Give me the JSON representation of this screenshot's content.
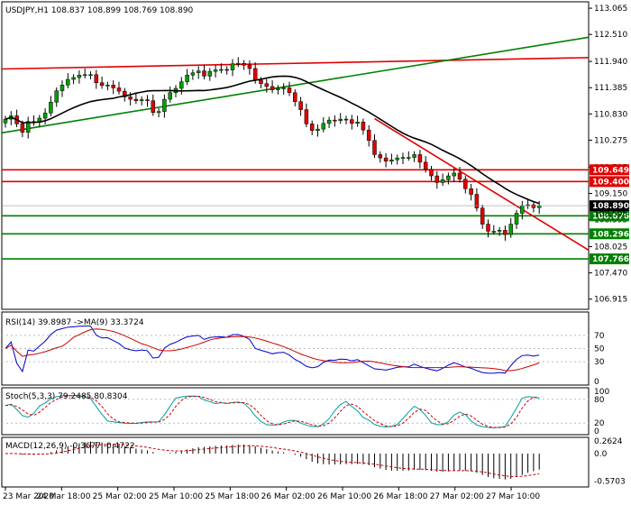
{
  "chart_data": {
    "type": "candlestick",
    "symbol_header": "USDJPY,H1  108.837 108.899 108.769 108.890",
    "price_axis": {
      "min": 106.7,
      "max": 113.2,
      "ticks": [
        "113.065",
        "112.510",
        "111.940",
        "111.385",
        "110.830",
        "110.275",
        "109.705",
        "109.150",
        "108.595",
        "108.025",
        "107.470",
        "106.915"
      ]
    },
    "time_axis": [
      "23 Mar 2020",
      "24 Mar 18:00",
      "25 Mar 02:00",
      "25 Mar 10:00",
      "25 Mar 18:00",
      "26 Mar 02:00",
      "26 Mar 10:00",
      "26 Mar 18:00",
      "27 Mar 02:00",
      "27 Mar 10:00"
    ],
    "colors": {
      "bull": "#00a000",
      "bear": "#e00000",
      "ma": "#000000",
      "support": "#008000",
      "resistance": "#e00000",
      "trend_up": "#008000",
      "trend_down": "#e00000"
    },
    "closes": [
      110.72,
      110.79,
      110.62,
      110.44,
      110.67,
      110.65,
      110.74,
      110.85,
      111.08,
      111.32,
      111.44,
      111.56,
      111.6,
      111.65,
      111.66,
      111.66,
      111.49,
      111.43,
      111.44,
      111.38,
      111.31,
      111.19,
      111.14,
      111.11,
      111.13,
      111.11,
      110.86,
      110.88,
      111.14,
      111.28,
      111.37,
      111.51,
      111.65,
      111.7,
      111.74,
      111.63,
      111.73,
      111.76,
      111.77,
      111.76,
      111.89,
      111.9,
      111.86,
      111.79,
      111.54,
      111.47,
      111.41,
      111.34,
      111.37,
      111.38,
      111.28,
      111.09,
      110.92,
      110.62,
      110.48,
      110.51,
      110.63,
      110.7,
      110.69,
      110.72,
      110.71,
      110.63,
      110.66,
      110.49,
      110.27,
      109.97,
      109.9,
      109.83,
      109.86,
      109.9,
      109.91,
      109.91,
      109.97,
      109.81,
      109.66,
      109.52,
      109.38,
      109.44,
      109.52,
      109.58,
      109.45,
      109.25,
      109.13,
      108.84,
      108.5,
      108.35,
      108.35,
      108.37,
      108.28,
      108.5,
      108.73,
      108.89,
      108.91,
      108.85,
      108.89
    ],
    "ma_period": 20,
    "horizontal_levels": [
      {
        "price": 109.649,
        "label": "109.649",
        "color": "#e00000"
      },
      {
        "price": 109.4,
        "label": "109.400",
        "color": "#e00000"
      },
      {
        "price": 108.676,
        "label": "108.676",
        "color": "#008000"
      },
      {
        "price": 108.296,
        "label": "108.296",
        "color": "#008000"
      },
      {
        "price": 107.766,
        "label": "107.766",
        "color": "#008000"
      }
    ],
    "resistance_line": {
      "start_price": 111.78,
      "end_price": 112.02,
      "color": "#e00000"
    },
    "upward_trendline": {
      "start_price": 110.43,
      "end_price": 112.45,
      "color": "#008000"
    },
    "downward_trendline": {
      "start_bar": 65,
      "start_price": 110.73,
      "end_price": 107.95,
      "color": "#e00000"
    },
    "current_price_label": "108.890",
    "current_price_sub": "108.595",
    "rsi": {
      "label": "RSI(14) 39.8987  ->MA(9) 33.3724",
      "levels": [
        "70",
        "50",
        "30",
        "0"
      ],
      "colors": [
        "#0000cc",
        "#cc0000"
      ]
    },
    "stoch": {
      "label": "Stoch(5,3,3) 79.2485 80.8304",
      "levels": [
        "100",
        "80",
        "20",
        "0"
      ],
      "colors": [
        "#00a0a0",
        "#cc0000"
      ]
    },
    "macd": {
      "label": "MACD(12,26,9) -0.3677 -0.4722",
      "ticks": [
        "0.2624",
        "0.0",
        "-0.5703"
      ],
      "colors": [
        "#000000",
        "#cc0000"
      ]
    }
  }
}
